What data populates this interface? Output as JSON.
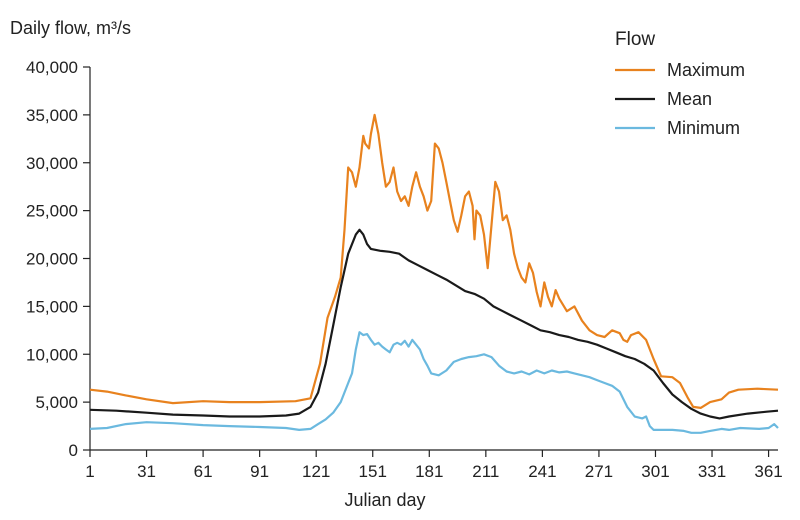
{
  "chart_data": {
    "type": "line",
    "ylabel": "Daily flow, m³/s",
    "xlabel": "Julian day",
    "xlim": [
      1,
      366
    ],
    "ylim": [
      0,
      40000
    ],
    "x_ticks": [
      1,
      31,
      61,
      91,
      121,
      151,
      181,
      211,
      241,
      271,
      301,
      331,
      361
    ],
    "y_ticks": [
      0,
      5000,
      10000,
      15000,
      20000,
      25000,
      30000,
      35000,
      40000
    ],
    "y_tick_labels": [
      "0",
      "5,000",
      "10,000",
      "15,000",
      "20,000",
      "25,000",
      "30,000",
      "35,000",
      "40,000"
    ],
    "legend": {
      "title": "Flow",
      "position": "top-right"
    },
    "grid": false,
    "series": [
      {
        "name": "Maximum",
        "color": "#e8821e",
        "points": [
          [
            1,
            6300
          ],
          [
            10,
            6100
          ],
          [
            20,
            5700
          ],
          [
            31,
            5300
          ],
          [
            45,
            4900
          ],
          [
            61,
            5100
          ],
          [
            75,
            5000
          ],
          [
            91,
            5000
          ],
          [
            110,
            5100
          ],
          [
            118,
            5400
          ],
          [
            123,
            9000
          ],
          [
            127,
            13800
          ],
          [
            131,
            16000
          ],
          [
            134,
            18000
          ],
          [
            136,
            23000
          ],
          [
            138,
            29500
          ],
          [
            140,
            29000
          ],
          [
            142,
            27500
          ],
          [
            144,
            29500
          ],
          [
            146,
            32800
          ],
          [
            147,
            32000
          ],
          [
            149,
            31500
          ],
          [
            150,
            33000
          ],
          [
            152,
            35000
          ],
          [
            154,
            33000
          ],
          [
            156,
            30000
          ],
          [
            158,
            27500
          ],
          [
            160,
            28000
          ],
          [
            162,
            29500
          ],
          [
            164,
            27000
          ],
          [
            166,
            26000
          ],
          [
            168,
            26500
          ],
          [
            170,
            25500
          ],
          [
            172,
            27500
          ],
          [
            174,
            29000
          ],
          [
            176,
            27500
          ],
          [
            178,
            26500
          ],
          [
            180,
            25000
          ],
          [
            182,
            26000
          ],
          [
            184,
            32000
          ],
          [
            186,
            31500
          ],
          [
            188,
            30000
          ],
          [
            190,
            28000
          ],
          [
            192,
            26000
          ],
          [
            194,
            24000
          ],
          [
            196,
            22800
          ],
          [
            198,
            24500
          ],
          [
            200,
            26500
          ],
          [
            202,
            27000
          ],
          [
            204,
            25500
          ],
          [
            205,
            22000
          ],
          [
            206,
            25000
          ],
          [
            208,
            24500
          ],
          [
            210,
            22500
          ],
          [
            212,
            19000
          ],
          [
            214,
            23500
          ],
          [
            216,
            28000
          ],
          [
            218,
            27000
          ],
          [
            220,
            24000
          ],
          [
            222,
            24500
          ],
          [
            224,
            23000
          ],
          [
            226,
            20500
          ],
          [
            228,
            19000
          ],
          [
            230,
            18000
          ],
          [
            232,
            17500
          ],
          [
            234,
            19500
          ],
          [
            236,
            18500
          ],
          [
            238,
            16500
          ],
          [
            240,
            15000
          ],
          [
            242,
            17500
          ],
          [
            244,
            16000
          ],
          [
            246,
            15000
          ],
          [
            248,
            16700
          ],
          [
            250,
            15800
          ],
          [
            254,
            14500
          ],
          [
            258,
            15000
          ],
          [
            262,
            13500
          ],
          [
            266,
            12500
          ],
          [
            270,
            12000
          ],
          [
            274,
            11800
          ],
          [
            278,
            12500
          ],
          [
            282,
            12200
          ],
          [
            284,
            11500
          ],
          [
            286,
            11300
          ],
          [
            288,
            12000
          ],
          [
            292,
            12300
          ],
          [
            296,
            11500
          ],
          [
            300,
            9500
          ],
          [
            304,
            7700
          ],
          [
            310,
            7600
          ],
          [
            314,
            7000
          ],
          [
            318,
            5500
          ],
          [
            321,
            4500
          ],
          [
            325,
            4400
          ],
          [
            330,
            5000
          ],
          [
            336,
            5300
          ],
          [
            340,
            6000
          ],
          [
            345,
            6300
          ],
          [
            355,
            6400
          ],
          [
            366,
            6300
          ]
        ]
      },
      {
        "name": "Mean",
        "color": "#1a1a1a",
        "points": [
          [
            1,
            4200
          ],
          [
            15,
            4100
          ],
          [
            31,
            3900
          ],
          [
            45,
            3700
          ],
          [
            61,
            3600
          ],
          [
            75,
            3500
          ],
          [
            91,
            3500
          ],
          [
            105,
            3600
          ],
          [
            112,
            3800
          ],
          [
            118,
            4500
          ],
          [
            122,
            6000
          ],
          [
            126,
            9000
          ],
          [
            130,
            13000
          ],
          [
            134,
            17000
          ],
          [
            138,
            20500
          ],
          [
            142,
            22500
          ],
          [
            144,
            23000
          ],
          [
            146,
            22500
          ],
          [
            148,
            21500
          ],
          [
            150,
            21000
          ],
          [
            155,
            20800
          ],
          [
            160,
            20700
          ],
          [
            165,
            20500
          ],
          [
            170,
            19800
          ],
          [
            175,
            19300
          ],
          [
            180,
            18800
          ],
          [
            185,
            18300
          ],
          [
            190,
            17800
          ],
          [
            195,
            17200
          ],
          [
            200,
            16600
          ],
          [
            205,
            16300
          ],
          [
            210,
            15800
          ],
          [
            215,
            15000
          ],
          [
            220,
            14500
          ],
          [
            225,
            14000
          ],
          [
            230,
            13500
          ],
          [
            235,
            13000
          ],
          [
            240,
            12500
          ],
          [
            245,
            12300
          ],
          [
            250,
            12000
          ],
          [
            255,
            11800
          ],
          [
            260,
            11500
          ],
          [
            265,
            11300
          ],
          [
            270,
            11000
          ],
          [
            275,
            10600
          ],
          [
            280,
            10200
          ],
          [
            285,
            9800
          ],
          [
            290,
            9500
          ],
          [
            295,
            9000
          ],
          [
            300,
            8300
          ],
          [
            305,
            7000
          ],
          [
            310,
            5800
          ],
          [
            315,
            5000
          ],
          [
            320,
            4300
          ],
          [
            325,
            3800
          ],
          [
            330,
            3500
          ],
          [
            335,
            3300
          ],
          [
            340,
            3500
          ],
          [
            350,
            3800
          ],
          [
            360,
            4000
          ],
          [
            366,
            4100
          ]
        ]
      },
      {
        "name": "Minimum",
        "color": "#6bb9df",
        "points": [
          [
            1,
            2200
          ],
          [
            10,
            2300
          ],
          [
            20,
            2700
          ],
          [
            31,
            2900
          ],
          [
            45,
            2800
          ],
          [
            61,
            2600
          ],
          [
            75,
            2500
          ],
          [
            91,
            2400
          ],
          [
            105,
            2300
          ],
          [
            112,
            2100
          ],
          [
            118,
            2200
          ],
          [
            122,
            2700
          ],
          [
            126,
            3200
          ],
          [
            130,
            3900
          ],
          [
            134,
            5000
          ],
          [
            138,
            7000
          ],
          [
            140,
            8000
          ],
          [
            142,
            10500
          ],
          [
            144,
            12300
          ],
          [
            146,
            12000
          ],
          [
            148,
            12100
          ],
          [
            150,
            11500
          ],
          [
            152,
            11000
          ],
          [
            154,
            11200
          ],
          [
            156,
            10800
          ],
          [
            158,
            10500
          ],
          [
            160,
            10200
          ],
          [
            162,
            11000
          ],
          [
            164,
            11200
          ],
          [
            166,
            11000
          ],
          [
            168,
            11400
          ],
          [
            170,
            10800
          ],
          [
            172,
            11500
          ],
          [
            174,
            11000
          ],
          [
            176,
            10500
          ],
          [
            178,
            9500
          ],
          [
            180,
            8800
          ],
          [
            182,
            8000
          ],
          [
            186,
            7800
          ],
          [
            190,
            8300
          ],
          [
            194,
            9200
          ],
          [
            198,
            9500
          ],
          [
            202,
            9700
          ],
          [
            206,
            9800
          ],
          [
            210,
            10000
          ],
          [
            214,
            9700
          ],
          [
            218,
            8800
          ],
          [
            222,
            8200
          ],
          [
            226,
            8000
          ],
          [
            230,
            8200
          ],
          [
            234,
            7900
          ],
          [
            238,
            8300
          ],
          [
            242,
            8000
          ],
          [
            246,
            8300
          ],
          [
            250,
            8100
          ],
          [
            254,
            8200
          ],
          [
            258,
            8000
          ],
          [
            262,
            7800
          ],
          [
            266,
            7600
          ],
          [
            270,
            7300
          ],
          [
            274,
            7000
          ],
          [
            278,
            6700
          ],
          [
            282,
            6100
          ],
          [
            286,
            4500
          ],
          [
            290,
            3500
          ],
          [
            294,
            3300
          ],
          [
            296,
            3500
          ],
          [
            298,
            2500
          ],
          [
            300,
            2100
          ],
          [
            310,
            2100
          ],
          [
            316,
            2000
          ],
          [
            320,
            1800
          ],
          [
            325,
            1800
          ],
          [
            330,
            2000
          ],
          [
            336,
            2200
          ],
          [
            340,
            2100
          ],
          [
            346,
            2300
          ],
          [
            356,
            2200
          ],
          [
            361,
            2300
          ],
          [
            364,
            2700
          ],
          [
            366,
            2300
          ]
        ]
      }
    ]
  }
}
